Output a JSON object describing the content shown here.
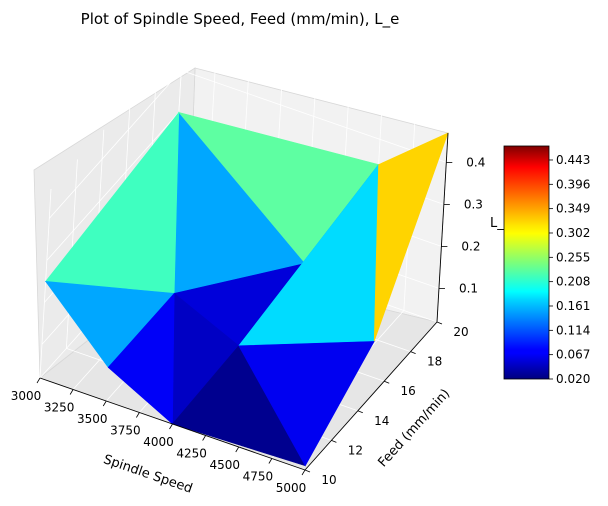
{
  "chart_data": {
    "type": "surface",
    "title": "Plot of Spindle Speed, Feed (mm/min), L_e",
    "xlabel": "Spindle Speed",
    "ylabel": "Feed (mm/min)",
    "zlabel": "L_e",
    "x_ticks": [
      "3000",
      "3250",
      "3500",
      "3750",
      "4000",
      "4250",
      "4500",
      "4750",
      "5000"
    ],
    "y_ticks": [
      "10",
      "12",
      "14",
      "16",
      "18",
      "20"
    ],
    "z_ticks": [
      "0.1",
      "0.2",
      "0.3",
      "0.4"
    ],
    "xlim": [
      3000,
      5000
    ],
    "ylim": [
      10,
      20
    ],
    "zlim": [
      0.02,
      0.47
    ],
    "colormap": "jet",
    "colorbar": {
      "min": 0.02,
      "max": 0.47,
      "ticks": [
        "0.020",
        "0.067",
        "0.114",
        "0.161",
        "0.208",
        "0.255",
        "0.302",
        "0.349",
        "0.396",
        "0.443"
      ]
    },
    "points": [
      {
        "x": 3000,
        "y": 10,
        "z": 0.25
      },
      {
        "x": 3500,
        "y": 10,
        "z": 0.1
      },
      {
        "x": 4000,
        "y": 10,
        "z": 0.02
      },
      {
        "x": 4000,
        "y": 15,
        "z": 0.03
      },
      {
        "x": 4000,
        "y": 20,
        "z": 0.05
      },
      {
        "x": 3500,
        "y": 15,
        "z": 0.1
      },
      {
        "x": 3000,
        "y": 20,
        "z": 0.3
      },
      {
        "x": 5000,
        "y": 10,
        "z": 0.03
      },
      {
        "x": 5000,
        "y": 15,
        "z": 0.15
      },
      {
        "x": 5000,
        "y": 20,
        "z": 0.47
      },
      {
        "x": 4500,
        "y": 20,
        "z": 0.34
      }
    ]
  }
}
